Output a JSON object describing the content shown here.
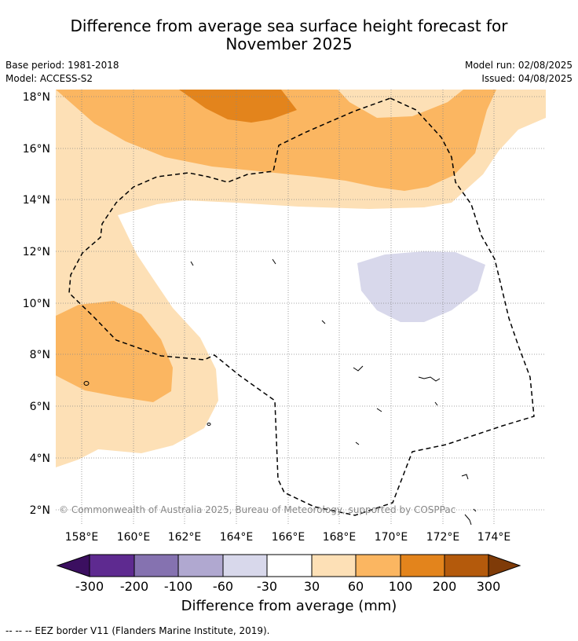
{
  "header": {
    "title_line1": "Difference from average sea surface height forecast for",
    "title_line2": "November 2025",
    "base_period": "Base period: 1981-2018",
    "model": "Model: ACCESS-S2",
    "model_run": "Model run: 02/08/2025",
    "issued": "Issued: 04/08/2025"
  },
  "map": {
    "lat_labels": [
      "18°N",
      "16°N",
      "14°N",
      "12°N",
      "10°N",
      "8°N",
      "6°N",
      "4°N",
      "2°N"
    ],
    "lon_labels": [
      "158°E",
      "160°E",
      "162°E",
      "164°E",
      "166°E",
      "168°E",
      "170°E",
      "172°E",
      "174°E"
    ],
    "copyright": "© Commonwealth of Australia 2025, Bureau of Meteorology, supported by COSPPac",
    "gridlines": true,
    "legend_entry": "EEZ border"
  },
  "colorbar": {
    "tick_labels": [
      "-300",
      "-200",
      "-100",
      "-60",
      "-30",
      "30",
      "60",
      "100",
      "200",
      "300"
    ],
    "colors": [
      "#3b0f60",
      "#5e2a90",
      "#8572b0",
      "#b0a8d0",
      "#d8d8eb",
      "#ffffff",
      "#fde0b6",
      "#fbb661",
      "#e3841c",
      "#b45a0c",
      "#7f3b08"
    ],
    "label": "Difference from average (mm)"
  },
  "footnote": "--  --  -- EEZ border V11 (Flanders Marine Institute, 2019)."
}
